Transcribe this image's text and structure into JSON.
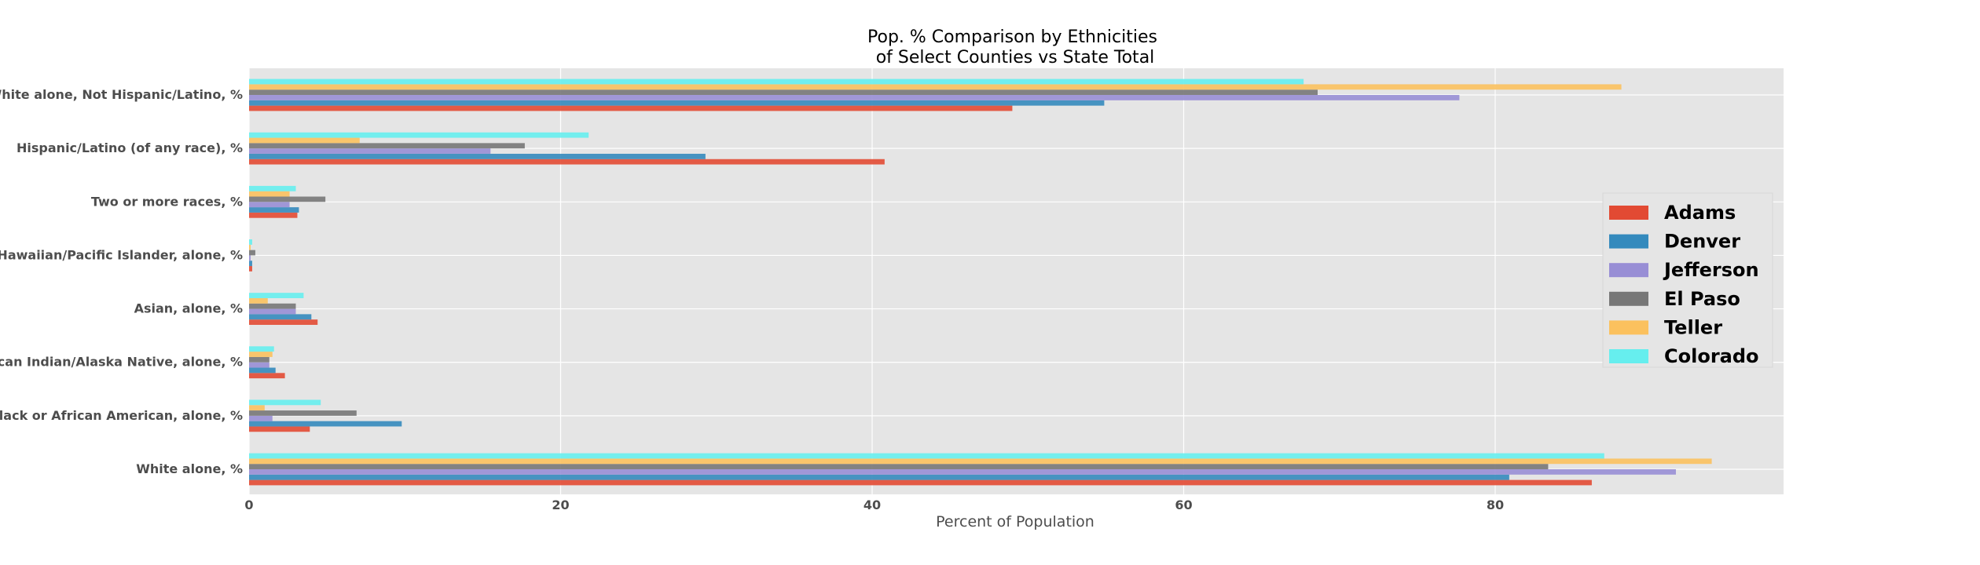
{
  "chart_data": {
    "type": "bar",
    "orientation": "horizontal",
    "title": "Pop. % Comparison by Ethnicities\nof Select Counties vs State Total",
    "xlabel": "Percent of Population",
    "ylabel": "",
    "xlim": [
      0,
      98.5
    ],
    "xticks": [
      0,
      20,
      40,
      60,
      80
    ],
    "grid": true,
    "legend_position": "center-right",
    "categories": [
      "White alone, %",
      "Black or African American, alone, %",
      "American Indian/Alaska Native, alone, %",
      "Asian, alone, %",
      "Native Hawaiian/Pacific Islander, alone, %",
      "Two or more races, %",
      "Hispanic/Latino (of any race), %",
      "White alone, Not Hispanic/Latino, %"
    ],
    "series": [
      {
        "name": "Adams",
        "color": "#E24A33",
        "values": [
          86.2,
          3.9,
          2.3,
          4.4,
          0.2,
          3.1,
          40.8,
          49.0
        ]
      },
      {
        "name": "Denver",
        "color": "#348ABD",
        "values": [
          80.9,
          9.8,
          1.7,
          4.0,
          0.2,
          3.2,
          29.3,
          54.9
        ]
      },
      {
        "name": "Jefferson",
        "color": "#988ED5",
        "values": [
          91.6,
          1.5,
          1.3,
          3.0,
          0.1,
          2.6,
          15.5,
          77.7
        ]
      },
      {
        "name": "El Paso",
        "color": "#777777",
        "values": [
          83.4,
          6.9,
          1.3,
          3.0,
          0.4,
          4.9,
          17.7,
          68.6
        ]
      },
      {
        "name": "Teller",
        "color": "#FBC15E",
        "values": [
          93.9,
          1.0,
          1.5,
          1.2,
          0.1,
          2.6,
          7.1,
          88.1
        ]
      },
      {
        "name": "Colorado",
        "color": "#66EEEE",
        "values": [
          87.0,
          4.6,
          1.6,
          3.5,
          0.2,
          3.0,
          21.8,
          67.7
        ]
      }
    ]
  }
}
